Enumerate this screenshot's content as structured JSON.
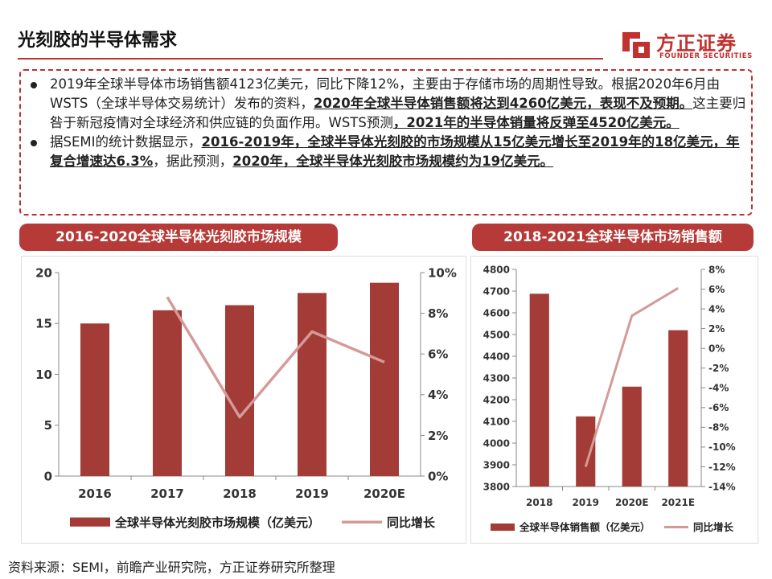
{
  "header": {
    "title": "光刻胶的半导体需求"
  },
  "brand": {
    "name_cn": "方正证券",
    "name_en": "FOUNDER SECURITIES",
    "color": "#c0312f"
  },
  "bullets": [
    {
      "parts": [
        {
          "text": "2019年全球半导体市场销售额4123亿美元，同比下降12%，主要由于存储市场的周期性导致。根据2020年6月由WSTS（全球半导体交易统计）发布的资料，",
          "bold": false
        },
        {
          "text": "2020年全球半导体销售额将达到4260亿美元，表现不及预期。",
          "bold": true
        },
        {
          "text": "这主要归咎于新冠疫情对全球经济和供应链的负面作用。WSTS预测",
          "bold": false
        },
        {
          "text": "，2021年的半导体销量将反弹至4520亿美元。",
          "bold": true
        }
      ]
    },
    {
      "parts": [
        {
          "text": "据SEMI的统计数据显示，",
          "bold": false
        },
        {
          "text": "2016-2019年，全球半导体光刻胶的市场规模从15亿美元增长至2019年的18亿美元，年复合增速达6.3%",
          "bold": true
        },
        {
          "text": "，据此预测，",
          "bold": false
        },
        {
          "text": "2020年，全球半导体光刻胶市场规模约为19亿美元。",
          "bold": true
        }
      ]
    }
  ],
  "left_chart_title": "2016-2020全球半导体光刻胶市场规模",
  "right_chart_title": "2018-2021全球半导体市场销售额",
  "source": "资料来源：SEMI，前瞻产业研究院，方正证券研究所整理",
  "colors": {
    "bar": "#a33b36",
    "line": "#d49a99",
    "accent": "#c0312f",
    "title_bg": "#b63a37"
  },
  "chart_data": [
    {
      "type": "bar",
      "categories": [
        "2016",
        "2017",
        "2018",
        "2019",
        "2020E"
      ],
      "series": [
        {
          "name": "全球半导体光刻胶市场规模（亿美元）",
          "type": "bar",
          "axis": "left",
          "values": [
            15.0,
            16.3,
            16.8,
            18.0,
            19.0
          ]
        },
        {
          "name": "同比增长",
          "type": "line",
          "axis": "right",
          "values": [
            null,
            8.8,
            2.9,
            7.1,
            5.6
          ]
        }
      ],
      "y_left": {
        "min": 0,
        "max": 20,
        "ticks": [
          0,
          5,
          10,
          15,
          20
        ],
        "labels": [
          "0",
          "5",
          "10",
          "15",
          "20"
        ]
      },
      "y_right": {
        "min": 0,
        "max": 10,
        "ticks": [
          0,
          2,
          4,
          6,
          8,
          10
        ],
        "labels": [
          "0%",
          "2%",
          "4%",
          "6%",
          "8%",
          "10%"
        ]
      },
      "grid": false,
      "legend": "bottom"
    },
    {
      "type": "bar",
      "categories": [
        "2018",
        "2019",
        "2020E",
        "2021E"
      ],
      "series": [
        {
          "name": "全球半导体销售额（亿美元）",
          "type": "bar",
          "axis": "left",
          "values": [
            4688,
            4123,
            4260,
            4520
          ]
        },
        {
          "name": "同比增长",
          "type": "line",
          "axis": "right",
          "values": [
            null,
            -12.0,
            3.3,
            6.1
          ]
        }
      ],
      "y_left": {
        "min": 3800,
        "max": 4800,
        "ticks": [
          3800,
          3900,
          4000,
          4100,
          4200,
          4300,
          4400,
          4500,
          4600,
          4700,
          4800
        ],
        "labels": [
          "3800",
          "3900",
          "4000",
          "4100",
          "4200",
          "4300",
          "4400",
          "4500",
          "4600",
          "4700",
          "4800"
        ]
      },
      "y_right": {
        "min": -14,
        "max": 8,
        "ticks": [
          -14,
          -12,
          -10,
          -8,
          -6,
          -4,
          -2,
          0,
          2,
          4,
          6,
          8
        ],
        "labels": [
          "-14%",
          "-12%",
          "-10%",
          "-8%",
          "-6%",
          "-4%",
          "-2%",
          "0%",
          "2%",
          "4%",
          "6%",
          "8%"
        ]
      },
      "grid": false,
      "legend": "bottom"
    }
  ]
}
